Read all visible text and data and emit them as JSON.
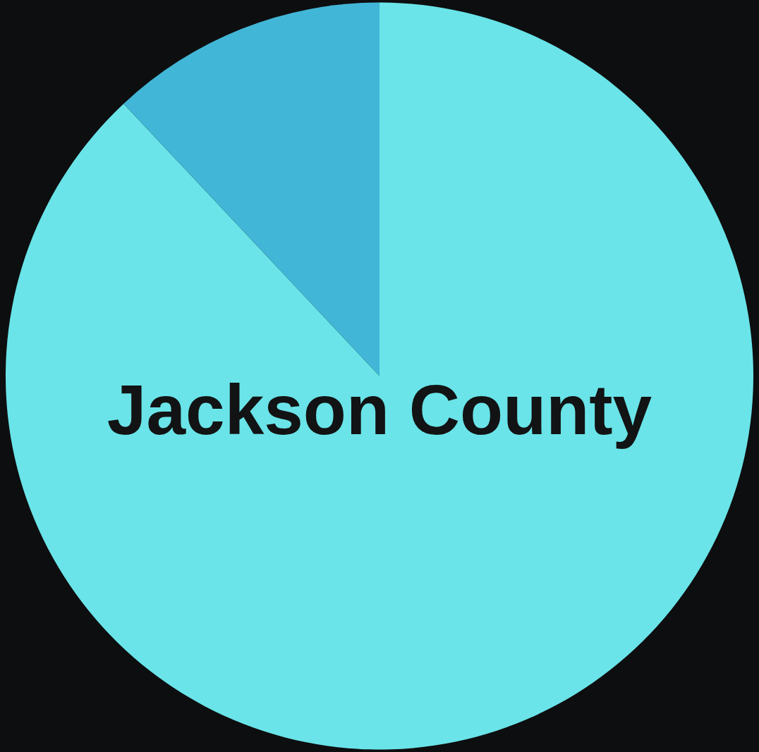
{
  "chart_data": {
    "type": "pie",
    "title": "Jackson County",
    "categories": [
      null,
      null
    ],
    "values": [
      88,
      12
    ],
    "colors": [
      "#6ae4e8",
      "#42b6d6"
    ]
  }
}
